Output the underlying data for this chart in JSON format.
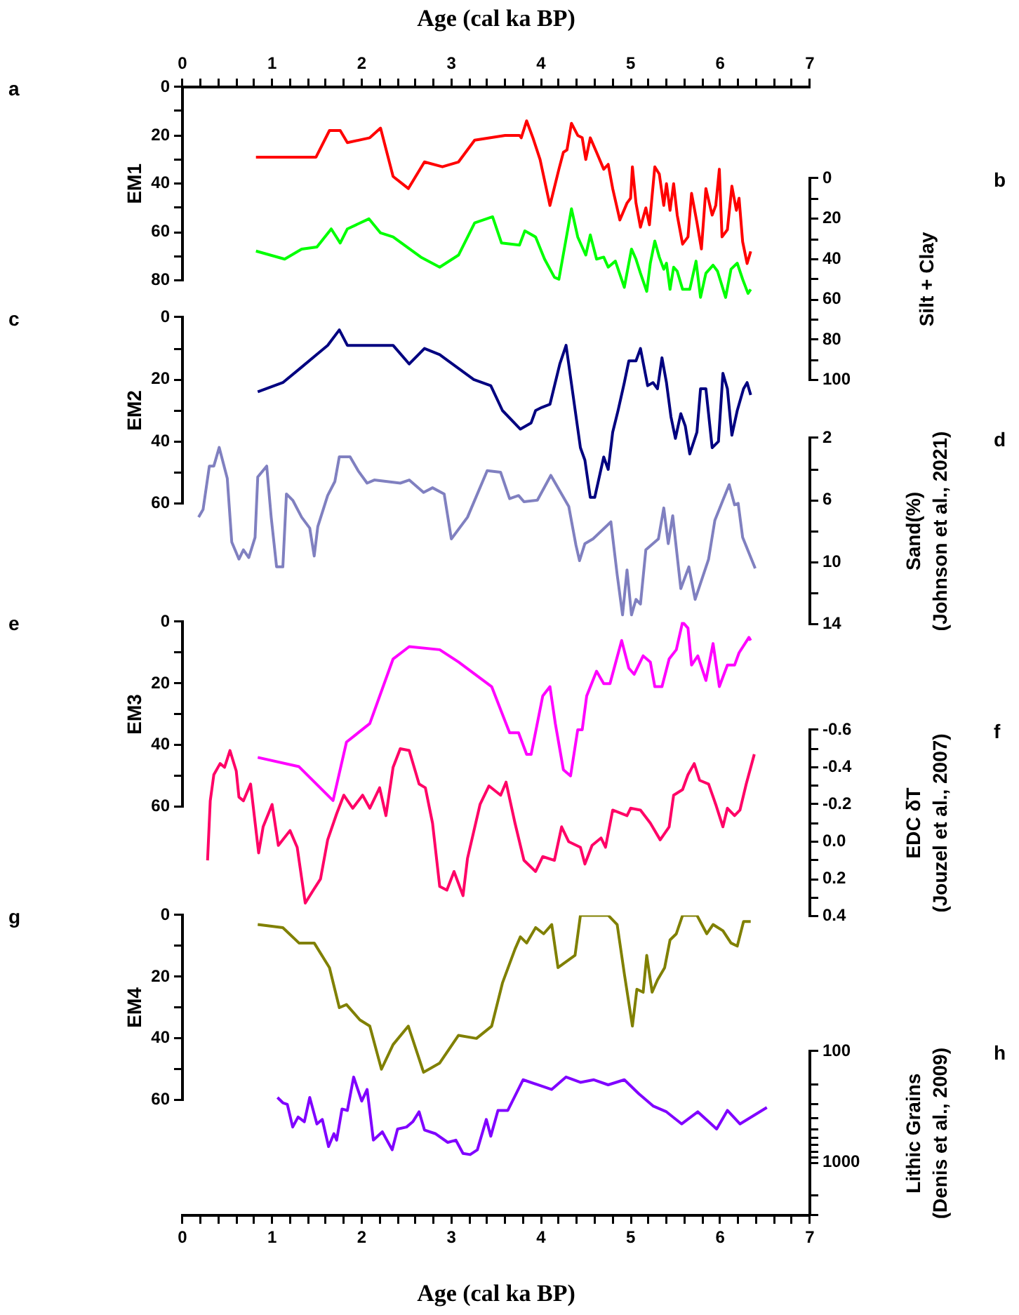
{
  "chart_data": [
    {
      "type": "line",
      "xlim": [
        0,
        7
      ],
      "x2lim": [
        0,
        7
      ],
      "x2label": "Age (cal ka BP)",
      "x2ticks": [
        0,
        {
          "value": 0.2,
          "label": null
        },
        {
          "value": 0.4,
          "label": null
        },
        {
          "value": 0.6,
          "label": null
        },
        {
          "value": 0.8,
          "label": null
        },
        1,
        {
          "value": 1.2,
          "label": null
        },
        {
          "value": 1.4,
          "label": null
        },
        {
          "value": 1.6,
          "label": null
        },
        {
          "value": 1.8,
          "label": null
        },
        2,
        {
          "value": 2.2,
          "label": null
        },
        {
          "value": 2.4,
          "label": null
        },
        {
          "value": 2.6,
          "label": null
        },
        {
          "value": 2.8,
          "label": null
        },
        3,
        {
          "value": 3.2,
          "label": null
        },
        {
          "value": 3.4,
          "label": null
        },
        {
          "value": 3.6,
          "label": null
        },
        {
          "value": 3.8,
          "label": null
        },
        4,
        {
          "value": 4.2,
          "label": null
        },
        {
          "value": 4.4,
          "label": null
        },
        {
          "value": 4.6,
          "label": null
        },
        {
          "value": 4.8,
          "label": null
        },
        5,
        {
          "value": 5.2,
          "label": null
        },
        {
          "value": 5.4,
          "label": null
        },
        {
          "value": 5.6,
          "label": null
        },
        {
          "value": 5.8,
          "label": null
        },
        6,
        {
          "value": 6.2,
          "label": null
        },
        {
          "value": 6.4,
          "label": null
        },
        {
          "value": 6.6,
          "label": null
        },
        {
          "value": 6.8,
          "label": null
        },
        7
      ],
      "ylim": [
        80,
        0
      ],
      "yticks": [
        0,
        {
          "value": 10,
          "label": null
        },
        20,
        {
          "value": 30,
          "label": null
        },
        40,
        {
          "value": 50,
          "label": null
        },
        60,
        {
          "value": 70,
          "label": null
        },
        80
      ],
      "ylabel": "EM1",
      "tick_labels": "y",
      "annotations": [
        "a"
      ],
      "series": [
        {
          "color": "#ff0000",
          "x": [
            0.82,
            1.49,
            1.64,
            1.76,
            1.84,
            2.09,
            2.21,
            2.35,
            2.52,
            2.7,
            2.9,
            3.08,
            3.26,
            3.6,
            3.76,
            3.78,
            3.84,
            3.91,
            3.99,
            4.1,
            4.2,
            4.25,
            4.29,
            4.34,
            4.41,
            4.46,
            4.5,
            4.55,
            4.62,
            4.7,
            4.75,
            4.8,
            4.88,
            4.96,
            5,
            5.02,
            5.06,
            5.11,
            5.17,
            5.21,
            5.27,
            5.32,
            5.37,
            5.4,
            5.44,
            5.48,
            5.52,
            5.58,
            5.64,
            5.68,
            5.74,
            5.79,
            5.84,
            5.91,
            5.95,
            5.99,
            6.02,
            6.08,
            6.13,
            6.18,
            6.21,
            6.25,
            6.3,
            6.34
          ],
          "values": [
            29,
            29,
            18,
            18,
            23,
            21,
            17,
            37,
            42,
            31,
            33,
            31,
            22,
            20,
            20,
            21,
            14,
            21,
            30,
            49,
            34,
            27,
            26,
            15,
            20,
            21,
            30,
            21,
            27,
            34,
            32,
            42,
            55,
            48,
            46,
            33,
            48,
            58,
            50,
            57,
            33,
            36,
            49,
            40,
            51,
            40,
            53,
            65,
            62,
            44,
            56,
            67,
            42,
            53,
            49,
            34,
            62,
            59,
            41,
            51,
            46,
            64,
            73,
            68
          ]
        }
      ]
    },
    {
      "type": "line",
      "xlim": [
        0,
        7
      ],
      "y2lim": [
        100,
        0
      ],
      "y2ticks": [
        0,
        {
          "value": 10,
          "label": null
        },
        20,
        {
          "value": 30,
          "label": null
        },
        40,
        {
          "value": 50,
          "label": null
        },
        60,
        {
          "value": 70,
          "label": null
        },
        80,
        {
          "value": 90,
          "label": null
        },
        100
      ],
      "y2label": "Silt + Clay",
      "tick_labels": "y",
      "annotations": [
        "b"
      ],
      "series": [
        {
          "color": "#00ff00",
          "axis": "y2",
          "x": [
            0.82,
            1.14,
            1.33,
            1.5,
            1.66,
            1.76,
            1.84,
            2.08,
            2.21,
            2.35,
            2.66,
            2.87,
            3.08,
            3.26,
            3.46,
            3.56,
            3.76,
            3.82,
            3.94,
            4.04,
            4.15,
            4.2,
            4.34,
            4.41,
            4.5,
            4.55,
            4.62,
            4.7,
            4.75,
            4.83,
            4.93,
            5.01,
            5.06,
            5.11,
            5.18,
            5.22,
            5.27,
            5.32,
            5.37,
            5.4,
            5.44,
            5.48,
            5.52,
            5.58,
            5.66,
            5.73,
            5.78,
            5.84,
            5.92,
            5.97,
            6.06,
            6.12,
            6.19,
            6.25,
            6.31,
            6.34
          ],
          "values": [
            36,
            40,
            35,
            34,
            25,
            32,
            25,
            20,
            27,
            29,
            39,
            44,
            38,
            22,
            19,
            32,
            33,
            26,
            29,
            40,
            49,
            50,
            15,
            29,
            38,
            28,
            40,
            39,
            44,
            41,
            54,
            35,
            40,
            47,
            56,
            42,
            31,
            39,
            45,
            42,
            55,
            44,
            46,
            55,
            55,
            41,
            59,
            47,
            43,
            46,
            59,
            45,
            42,
            50,
            57,
            55
          ]
        }
      ]
    },
    {
      "type": "line",
      "xlim": [
        0,
        7
      ],
      "ylim": [
        60,
        0
      ],
      "yticks": [
        0,
        {
          "value": 10,
          "label": null
        },
        20,
        {
          "value": 30,
          "label": null
        },
        40,
        {
          "value": 50,
          "label": null
        },
        60
      ],
      "ylabel": "EM2",
      "tick_labels": "y",
      "annotations": [
        "c"
      ],
      "series": [
        {
          "color": "#000080",
          "x": [
            0.84,
            1.12,
            1.33,
            1.62,
            1.75,
            1.84,
            2.35,
            2.53,
            2.7,
            2.87,
            3.25,
            3.44,
            3.57,
            3.77,
            3.89,
            3.94,
            4.01,
            4.1,
            4.21,
            4.28,
            4.44,
            4.49,
            4.55,
            4.6,
            4.7,
            4.75,
            4.8,
            4.86,
            4.93,
            4.98,
            5.06,
            5.11,
            5.19,
            5.25,
            5.3,
            5.35,
            5.4,
            5.45,
            5.5,
            5.56,
            5.61,
            5.66,
            5.74,
            5.78,
            5.84,
            5.91,
            5.98,
            6.03,
            6.08,
            6.13,
            6.19,
            6.26,
            6.3,
            6.34
          ],
          "values": [
            24,
            21,
            16,
            9,
            4,
            9,
            9,
            15,
            10,
            12,
            20,
            22,
            30,
            36,
            34,
            30,
            29,
            28,
            15,
            9,
            42,
            46,
            58,
            58,
            45,
            49,
            37,
            30,
            21,
            14,
            14,
            10,
            22,
            21,
            23,
            13,
            21,
            32,
            39,
            31,
            35,
            44,
            37,
            23,
            23,
            42,
            40,
            18,
            23,
            38,
            30,
            23,
            21,
            25
          ]
        }
      ]
    },
    {
      "type": "line",
      "xlim": [
        0,
        7
      ],
      "y2lim": [
        14,
        2
      ],
      "y2ticks": [
        2,
        {
          "value": 4,
          "label": null
        },
        6,
        {
          "value": 8,
          "label": null
        },
        10,
        {
          "value": 12,
          "label": null
        },
        14
      ],
      "y2label": "Sand(%)\n(Johnson et al., 2021)",
      "tick_labels": "y",
      "annotations": [
        "d"
      ],
      "series": [
        {
          "color": "#8080c0",
          "axis": "y2",
          "x": [
            0.18,
            0.23,
            0.3,
            0.35,
            0.41,
            0.5,
            0.55,
            0.63,
            0.68,
            0.74,
            0.81,
            0.84,
            0.94,
            0.99,
            1.05,
            1.12,
            1.16,
            1.23,
            1.33,
            1.42,
            1.47,
            1.51,
            1.62,
            1.7,
            1.75,
            1.87,
            1.96,
            2.06,
            2.14,
            2.43,
            2.53,
            2.69,
            2.79,
            2.92,
            3,
            3.18,
            3.4,
            3.55,
            3.65,
            3.75,
            3.81,
            3.96,
            4.11,
            4.31,
            4.39,
            4.43,
            4.49,
            4.58,
            4.78,
            4.85,
            4.91,
            4.96,
            5.01,
            5.06,
            5.11,
            5.17,
            5.31,
            5.37,
            5.42,
            5.47,
            5.56,
            5.65,
            5.72,
            5.87,
            5.94,
            6.03,
            6.1,
            6.16,
            6.2,
            6.25,
            6.39
          ],
          "values": [
            7.1,
            6.6,
            3.8,
            3.8,
            2.6,
            4.6,
            8.7,
            9.8,
            9.2,
            9.7,
            8.4,
            4.5,
            3.8,
            7.1,
            10.3,
            10.3,
            5.6,
            6,
            7.1,
            7.8,
            9.6,
            7.7,
            5.7,
            4.8,
            3.2,
            3.2,
            4.1,
            4.9,
            4.7,
            4.9,
            4.7,
            5.5,
            5.2,
            5.6,
            8.5,
            7.1,
            4.1,
            4.2,
            5.9,
            5.7,
            6.1,
            6,
            4.4,
            6.4,
            8.9,
            9.9,
            8.8,
            8.5,
            7.4,
            10.8,
            13.4,
            10.5,
            13.4,
            12.4,
            12.7,
            9.2,
            8.5,
            6.5,
            8.8,
            7,
            11.7,
            10.3,
            12.4,
            9.8,
            7.3,
            6,
            5,
            6.3,
            6.2,
            8.4,
            10.4
          ]
        }
      ]
    },
    {
      "type": "line",
      "xlim": [
        0,
        7
      ],
      "ylim": [
        60,
        0
      ],
      "yticks": [
        0,
        {
          "value": 10,
          "label": null
        },
        20,
        {
          "value": 30,
          "label": null
        },
        40,
        {
          "value": 50,
          "label": null
        },
        60
      ],
      "ylabel": "EM3",
      "tick_labels": "y",
      "annotations": [
        "e"
      ],
      "series": [
        {
          "color": "#ff00ff",
          "x": [
            0.84,
            1.3,
            1.68,
            1.83,
            2.09,
            2.35,
            2.53,
            2.87,
            3.08,
            3.45,
            3.65,
            3.75,
            3.84,
            3.89,
            4.02,
            4.1,
            4.16,
            4.25,
            4.33,
            4.41,
            4.46,
            4.51,
            4.62,
            4.7,
            4.77,
            4.9,
            4.98,
            5.04,
            5.14,
            5.22,
            5.27,
            5.35,
            5.43,
            5.51,
            5.58,
            5.64,
            5.68,
            5.75,
            5.84,
            5.92,
            5.99,
            6.08,
            6.16,
            6.21,
            6.32,
            6.34
          ],
          "values": [
            44,
            47,
            58,
            39,
            33,
            12,
            8,
            9,
            13,
            21,
            36,
            36,
            43,
            43,
            24,
            21,
            33,
            48,
            50,
            35,
            35,
            24,
            16,
            20,
            20,
            6,
            15,
            17,
            11,
            13,
            21,
            21,
            12,
            9,
            0,
            2,
            14,
            11,
            19,
            7,
            21,
            14,
            14,
            10,
            5,
            6
          ]
        }
      ]
    },
    {
      "type": "line",
      "xlim": [
        0,
        7
      ],
      "y2lim": [
        0.4,
        -0.6
      ],
      "y2ticks": [
        -0.6,
        {
          "value": -0.5,
          "label": null
        },
        -0.4,
        {
          "value": -0.3,
          "label": null
        },
        -0.2,
        {
          "value": -0.1,
          "label": null
        },
        {
          "value": 0,
          "label": "0.0"
        },
        {
          "value": 0.1,
          "label": null
        },
        0.2,
        {
          "value": 0.3,
          "label": null
        },
        0.4
      ],
      "y2label": "EDC δT\n(Jouzel et al., 2007)",
      "tick_labels": "y",
      "annotations": [
        "f"
      ],
      "series": [
        {
          "color": "#ff0066",
          "axis": "y2",
          "x": [
            0.28,
            0.31,
            0.35,
            0.42,
            0.47,
            0.53,
            0.6,
            0.63,
            0.68,
            0.76,
            0.85,
            0.9,
            1,
            1.07,
            1.2,
            1.28,
            1.37,
            1.46,
            1.54,
            1.62,
            1.72,
            1.8,
            1.9,
            2.01,
            2.09,
            2.2,
            2.27,
            2.35,
            2.43,
            2.53,
            2.64,
            2.71,
            2.79,
            2.87,
            2.95,
            3.03,
            3.13,
            3.18,
            3.32,
            3.42,
            3.55,
            3.61,
            3.71,
            3.81,
            3.94,
            4.02,
            4.15,
            4.23,
            4.31,
            4.44,
            4.49,
            4.57,
            4.67,
            4.72,
            4.8,
            4.96,
            5,
            5.11,
            5.22,
            5.33,
            5.43,
            5.48,
            5.58,
            5.64,
            5.71,
            5.77,
            5.87,
            5.95,
            6.03,
            6.08,
            6.16,
            6.22,
            6.29,
            6.38
          ],
          "values": [
            0.1,
            -0.22,
            -0.36,
            -0.42,
            -0.4,
            -0.49,
            -0.38,
            -0.24,
            -0.22,
            -0.31,
            0.06,
            -0.08,
            -0.2,
            0.02,
            -0.06,
            0.03,
            0.33,
            0.26,
            0.2,
            -0.01,
            -0.15,
            -0.25,
            -0.18,
            -0.25,
            -0.18,
            -0.29,
            -0.14,
            -0.4,
            -0.5,
            -0.49,
            -0.31,
            -0.29,
            -0.1,
            0.24,
            0.26,
            0.16,
            0.29,
            0.09,
            -0.2,
            -0.3,
            -0.25,
            -0.32,
            -0.1,
            0.1,
            0.16,
            0.08,
            0.1,
            -0.08,
            0,
            0.03,
            0.12,
            0.02,
            -0.02,
            0.03,
            -0.17,
            -0.14,
            -0.18,
            -0.17,
            -0.1,
            -0.01,
            -0.08,
            -0.25,
            -0.28,
            -0.36,
            -0.42,
            -0.33,
            -0.31,
            -0.2,
            -0.08,
            -0.18,
            -0.14,
            -0.17,
            -0.31,
            -0.47
          ]
        }
      ]
    },
    {
      "type": "line",
      "xlim": [
        0,
        7
      ],
      "ylim": [
        60,
        0
      ],
      "yticks": [
        0,
        {
          "value": 10,
          "label": null
        },
        20,
        {
          "value": 30,
          "label": null
        },
        40,
        {
          "value": 50,
          "label": null
        },
        60
      ],
      "ylabel": "EM4",
      "tick_labels": "y",
      "annotations": [
        "g"
      ],
      "series": [
        {
          "color": "#808000",
          "x": [
            0.84,
            1.12,
            1.3,
            1.47,
            1.64,
            1.75,
            1.83,
            1.98,
            2.09,
            2.22,
            2.35,
            2.52,
            2.69,
            2.87,
            3.08,
            3.28,
            3.45,
            3.57,
            3.71,
            3.77,
            3.84,
            3.94,
            4.03,
            4.12,
            4.19,
            4.38,
            4.44,
            4.75,
            4.85,
            4.93,
            5.02,
            5.07,
            5.14,
            5.18,
            5.24,
            5.3,
            5.38,
            5.44,
            5.51,
            5.58,
            5.74,
            5.85,
            5.92,
            6.03,
            6.12,
            6.19,
            6.26,
            6.34
          ],
          "values": [
            3,
            4,
            9,
            9,
            17,
            30,
            29,
            34,
            36,
            50,
            42,
            36,
            51,
            48,
            39,
            40,
            36,
            22,
            11,
            7,
            9,
            4,
            6,
            3,
            17,
            13,
            0,
            0,
            3,
            19,
            36,
            24,
            25,
            13,
            25,
            21,
            17,
            8,
            6,
            0,
            0,
            6,
            3,
            5,
            9,
            10,
            2,
            2
          ]
        }
      ]
    },
    {
      "type": "line",
      "xlim": [
        0,
        7
      ],
      "xlabel": "Age (cal ka BP)",
      "xticks": [
        0,
        {
          "value": 0.2,
          "label": null
        },
        {
          "value": 0.4,
          "label": null
        },
        {
          "value": 0.6,
          "label": null
        },
        {
          "value": 0.8,
          "label": null
        },
        1,
        {
          "value": 1.2,
          "label": null
        },
        {
          "value": 1.4,
          "label": null
        },
        {
          "value": 1.6,
          "label": null
        },
        {
          "value": 1.8,
          "label": null
        },
        2,
        {
          "value": 2.2,
          "label": null
        },
        {
          "value": 2.4,
          "label": null
        },
        {
          "value": 2.6,
          "label": null
        },
        {
          "value": 2.8,
          "label": null
        },
        3,
        {
          "value": 3.2,
          "label": null
        },
        {
          "value": 3.4,
          "label": null
        },
        {
          "value": 3.6,
          "label": null
        },
        {
          "value": 3.8,
          "label": null
        },
        4,
        {
          "value": 4.2,
          "label": null
        },
        {
          "value": 4.4,
          "label": null
        },
        {
          "value": 4.6,
          "label": null
        },
        {
          "value": 4.8,
          "label": null
        },
        5,
        {
          "value": 5.2,
          "label": null
        },
        {
          "value": 5.4,
          "label": null
        },
        {
          "value": 5.6,
          "label": null
        },
        {
          "value": 5.8,
          "label": null
        },
        6,
        {
          "value": 6.2,
          "label": null
        },
        {
          "value": 6.4,
          "label": null
        },
        {
          "value": 6.6,
          "label": null
        },
        {
          "value": 6.8,
          "label": null
        },
        7
      ],
      "y2lim": [
        3000,
        100
      ],
      "y2ticks": [
        100,
        {
          "value": 200,
          "label": null
        },
        {
          "value": 300,
          "label": null
        },
        {
          "value": 400,
          "label": null
        },
        {
          "value": 500,
          "label": null
        },
        {
          "value": 600,
          "label": null
        },
        {
          "value": 700,
          "label": null
        },
        {
          "value": 800,
          "label": null
        },
        {
          "value": 900,
          "label": null
        },
        1000,
        {
          "value": 2000,
          "label": null
        },
        {
          "value": 3000,
          "label": null
        }
      ],
      "y2label": "Lithic Grains\n(Denis et al., 2009)",
      "log": "y2",
      "annotations": [
        "h"
      ],
      "series": [
        {
          "color": "#8000ff",
          "axis": "y2",
          "x": [
            1.06,
            1.12,
            1.17,
            1.23,
            1.29,
            1.36,
            1.42,
            1.5,
            1.56,
            1.63,
            1.69,
            1.72,
            1.78,
            1.84,
            1.91,
            2,
            2.06,
            2.13,
            2.23,
            2.34,
            2.4,
            2.5,
            2.57,
            2.64,
            2.7,
            2.82,
            2.96,
            3.05,
            3.13,
            3.21,
            3.29,
            3.39,
            3.44,
            3.52,
            3.63,
            3.8,
            4.12,
            4.28,
            4.44,
            4.59,
            4.75,
            4.93,
            5.09,
            5.25,
            5.4,
            5.57,
            5.75,
            5.96,
            6.08,
            6.22,
            6.52
          ],
          "values": [
            260,
            290,
            300,
            480,
            390,
            430,
            260,
            450,
            410,
            720,
            550,
            630,
            330,
            340,
            170,
            280,
            220,
            630,
            530,
            770,
            500,
            480,
            430,
            350,
            510,
            550,
            660,
            630,
            830,
            850,
            770,
            410,
            580,
            340,
            340,
            180,
            220,
            170,
            190,
            180,
            200,
            180,
            240,
            310,
            350,
            450,
            350,
            500,
            340,
            450,
            320
          ]
        }
      ]
    }
  ]
}
